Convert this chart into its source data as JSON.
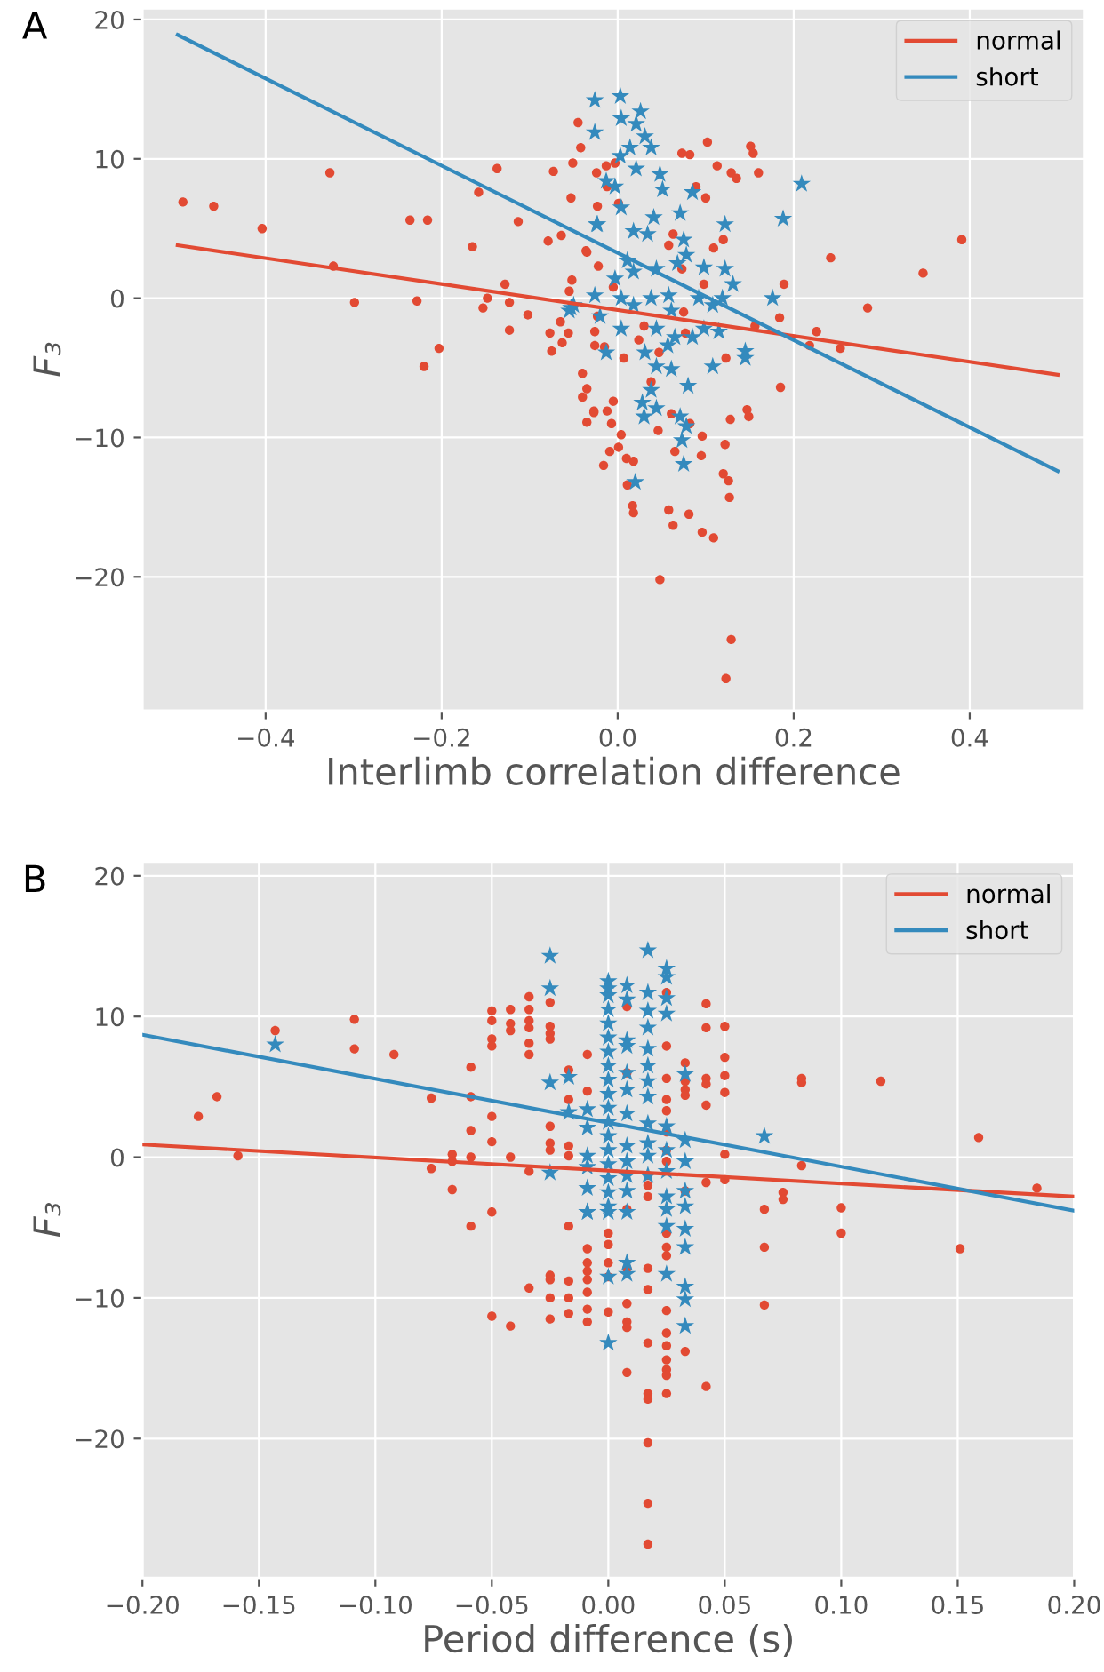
{
  "chart_data": [
    {
      "type": "scatter",
      "title": "A",
      "xlabel": "Interlimb correlation difference",
      "ylabel": "F₃",
      "xlim": [
        -0.54,
        0.53
      ],
      "ylim": [
        -29.6,
        20.8
      ],
      "xticks": [
        {
          "value": -0.4,
          "label": "−0.4"
        },
        {
          "value": -0.2,
          "label": "−0.2"
        },
        {
          "value": 0,
          "label": "0.0"
        },
        {
          "value": 0.2,
          "label": "0.2"
        },
        {
          "value": 0.4,
          "label": "0.4"
        }
      ],
      "yticks": [
        -20,
        -10,
        0,
        10,
        20
      ],
      "grid": true,
      "legend": "top right",
      "series": [
        {
          "type": "scatter",
          "marker": "circle",
          "color": "#e24a33",
          "x": [
            -0.494,
            -0.459,
            -0.404,
            -0.327,
            -0.323,
            -0.299,
            -0.236,
            -0.216,
            -0.228,
            -0.22,
            -0.203,
            -0.165,
            -0.158,
            -0.137,
            -0.153,
            -0.148,
            -0.128,
            -0.123,
            -0.123,
            -0.102,
            -0.113,
            -0.079,
            -0.073,
            -0.064,
            -0.077,
            -0.075,
            -0.063,
            -0.056,
            -0.065,
            -0.055,
            -0.053,
            -0.051,
            -0.045,
            -0.042,
            -0.04,
            -0.035,
            -0.04,
            -0.035,
            -0.027,
            -0.016,
            -0.009,
            -0.005,
            -0.022,
            -0.035,
            -0.023,
            -0.024,
            -0.013,
            -0.036,
            -0.052,
            -0.026,
            -0.015,
            -0.027,
            -0.012,
            -0.007,
            0.004,
            0.001,
            0.01,
            0.018,
            0.011,
            0.017,
            0.018,
            0.048,
            0.058,
            0.063,
            0.081,
            0.096,
            0.109,
            0.129,
            0.123,
            0.12,
            0.126,
            0.127,
            0.122,
            0.096,
            0.095,
            0.065,
            0.082,
            0.061,
            0.046,
            0.038,
            0.128,
            0.147,
            0.149,
            0.185,
            0.123,
            0.077,
            0.156,
            0.184,
            0.189,
            0.218,
            0.226,
            0.253,
            0.284,
            0.242,
            0.347,
            0.391,
            0.109,
            0.12,
            0.098,
            0.102,
            0.073,
            0.082,
            0.113,
            0.129,
            0.135,
            0.16,
            0.151,
            0.154,
            0.089,
            0.1,
            0.063,
            0.058,
            0.073,
            0.075,
            -0.023,
            -0.005,
            0.001,
            -0.003,
            -0.012,
            -0.026,
            0.007,
            0.024,
            0.047,
            0.03
          ],
          "values": [
            6.9,
            6.6,
            5.0,
            9.0,
            2.3,
            -0.3,
            5.6,
            5.6,
            -0.2,
            -4.9,
            -3.6,
            3.7,
            7.6,
            9.3,
            -0.7,
            0.0,
            1.0,
            -0.3,
            -2.3,
            -1.2,
            5.5,
            4.1,
            9.1,
            4.5,
            -2.5,
            -3.8,
            -3.2,
            -2.5,
            -1.7,
            0.5,
            7.2,
            9.7,
            12.6,
            10.8,
            -5.4,
            -6.5,
            -7.1,
            -8.9,
            -8.1,
            -12.0,
            -11.0,
            -7.4,
            2.3,
            3.3,
            6.6,
            9.0,
            9.5,
            3.4,
            1.3,
            -3.4,
            -3.5,
            -8.2,
            -8.1,
            -9.0,
            -9.8,
            -10.7,
            -11.5,
            -11.7,
            -13.4,
            -14.9,
            -15.4,
            -20.2,
            -15.2,
            -16.3,
            -15.5,
            -16.8,
            -17.2,
            -24.5,
            -27.3,
            -12.6,
            -13.1,
            -14.3,
            -10.5,
            -9.9,
            -11.3,
            -11.0,
            -9.0,
            -8.3,
            -9.5,
            -6.0,
            -8.7,
            -8.0,
            -8.5,
            -6.4,
            -4.3,
            -2.5,
            -2.0,
            -1.4,
            1.0,
            -3.4,
            -2.4,
            -3.6,
            -0.7,
            2.9,
            1.8,
            4.2,
            3.6,
            4.2,
            1.0,
            11.2,
            10.4,
            10.3,
            9.5,
            9.0,
            8.6,
            9.0,
            10.9,
            10.4,
            8.0,
            7.2,
            4.6,
            3.8,
            2.1,
            -1.0,
            -1.3,
            0.8,
            6.8,
            9.7,
            8.0,
            -2.4,
            -4.3,
            -3.0,
            -3.9,
            -2.0
          ]
        },
        {
          "type": "scatter",
          "marker": "star",
          "color": "#348abd",
          "x": [
            -0.026,
            0.003,
            -0.026,
            0.004,
            0.026,
            0.021,
            0.031,
            0.014,
            0.038,
            0.003,
            0.021,
            0.048,
            0.051,
            -0.013,
            -0.003,
            0.085,
            0.209,
            0.188,
            0.122,
            0.071,
            0.041,
            -0.023,
            0.004,
            0.018,
            0.034,
            0.075,
            0.068,
            0.078,
            0.098,
            0.122,
            0.131,
            0.044,
            0.011,
            0.018,
            -0.003,
            -0.026,
            -0.05,
            -0.055,
            -0.02,
            0.004,
            0.018,
            0.038,
            0.058,
            0.061,
            0.092,
            0.108,
            0.119,
            0.176,
            0.004,
            0.044,
            0.065,
            0.085,
            0.098,
            0.115,
            -0.013,
            0.031,
            0.057,
            0.044,
            0.061,
            0.108,
            0.145,
            0.145,
            0.08,
            0.038,
            0.028,
            0.044,
            0.03,
            0.071,
            0.078,
            0.073,
            0.075,
            0.02,
            -0.053,
            -0.024
          ],
          "values": [
            14.2,
            14.5,
            11.9,
            12.9,
            13.4,
            12.5,
            11.6,
            10.8,
            10.8,
            10.2,
            9.3,
            8.9,
            7.8,
            8.4,
            8.0,
            7.6,
            8.2,
            5.7,
            5.3,
            6.1,
            5.8,
            5.3,
            6.5,
            4.8,
            4.6,
            4.2,
            2.5,
            3.1,
            2.2,
            2.1,
            1.0,
            2.1,
            2.7,
            1.9,
            1.4,
            0.2,
            -0.5,
            -0.9,
            -1.3,
            0.0,
            -0.5,
            0.0,
            0.2,
            -0.9,
            0.0,
            -0.5,
            0.0,
            0.0,
            -2.2,
            -2.2,
            -2.8,
            -2.8,
            -2.2,
            -2.4,
            -3.9,
            -3.9,
            -3.4,
            -4.9,
            -5.1,
            -4.9,
            -3.8,
            -4.3,
            -6.3,
            -6.6,
            -7.5,
            -7.9,
            -8.5,
            -8.5,
            -9.2,
            -10.2,
            -11.9,
            -13.2,
            -0.7,
            5.3
          ]
        },
        {
          "type": "line",
          "name": "normal",
          "marker": "none",
          "color": "#e24a33",
          "x": [
            -0.5,
            0.5
          ],
          "values": [
            3.8,
            -5.5
          ]
        },
        {
          "type": "line",
          "name": "short",
          "marker": "none",
          "color": "#348abd",
          "x": [
            -0.5,
            0.5
          ],
          "values": [
            18.9,
            -12.4
          ]
        }
      ]
    },
    {
      "type": "scatter",
      "title": "B",
      "xlabel": "Period difference (s)",
      "ylabel": "F₃",
      "xlim": [
        -0.2,
        0.2
      ],
      "ylim": [
        -29.9,
        21
      ],
      "xticks": [
        {
          "value": -0.2,
          "label": "−0.20"
        },
        {
          "value": -0.15,
          "label": "−0.15"
        },
        {
          "value": -0.1,
          "label": "−0.10"
        },
        {
          "value": -0.05,
          "label": "−0.05"
        },
        {
          "value": 0,
          "label": "0.00"
        },
        {
          "value": 0.05,
          "label": "0.05"
        },
        {
          "value": 0.1,
          "label": "0.10"
        },
        {
          "value": 0.15,
          "label": "0.15"
        },
        {
          "value": 0.2,
          "label": "0.20"
        }
      ],
      "yticks": [
        -20,
        -10,
        0,
        10,
        20
      ],
      "grid": true,
      "legend": "top right",
      "series": [
        {
          "type": "scatter",
          "marker": "circle",
          "color": "#e24a33",
          "x": [
            -0.176,
            -0.168,
            -0.159,
            -0.143,
            -0.109,
            -0.109,
            -0.092,
            -0.076,
            -0.076,
            -0.067,
            -0.067,
            -0.067,
            -0.059,
            -0.059,
            -0.059,
            -0.059,
            -0.059,
            -0.05,
            -0.05,
            -0.05,
            -0.05,
            -0.05,
            -0.05,
            -0.05,
            -0.05,
            -0.042,
            -0.042,
            -0.042,
            -0.042,
            -0.042,
            -0.034,
            -0.034,
            -0.034,
            -0.034,
            -0.034,
            -0.034,
            -0.034,
            -0.034,
            -0.025,
            -0.025,
            -0.025,
            -0.025,
            -0.025,
            -0.025,
            -0.025,
            -0.025,
            -0.025,
            -0.025,
            -0.025,
            -0.017,
            -0.017,
            -0.017,
            -0.017,
            -0.017,
            -0.017,
            -0.017,
            -0.017,
            -0.009,
            -0.009,
            -0.009,
            -0.009,
            -0.009,
            -0.009,
            -0.009,
            -0.009,
            -0.009,
            0.0,
            0.0,
            0.0,
            0.0,
            0.0,
            0.008,
            0.008,
            0.008,
            0.008,
            0.008,
            0.008,
            0.008,
            0.008,
            0.017,
            0.017,
            0.017,
            0.017,
            0.017,
            0.017,
            0.017,
            0.017,
            0.017,
            0.017,
            0.017,
            0.025,
            0.025,
            0.025,
            0.025,
            0.025,
            0.025,
            0.025,
            0.025,
            0.025,
            0.025,
            0.025,
            0.025,
            0.025,
            0.025,
            0.025,
            0.025,
            0.025,
            0.025,
            0.033,
            0.033,
            0.033,
            0.033,
            0.033,
            0.033,
            0.042,
            0.042,
            0.042,
            0.042,
            0.042,
            0.042,
            0.042,
            0.05,
            0.05,
            0.05,
            0.05,
            0.05,
            0.05,
            0.067,
            0.067,
            0.067,
            0.075,
            0.075,
            0.083,
            0.083,
            0.083,
            0.1,
            0.1,
            0.117,
            0.151,
            0.159,
            0.184
          ],
          "values": [
            2.9,
            4.3,
            0.1,
            9.0,
            9.8,
            7.7,
            7.3,
            4.2,
            -0.8,
            0.2,
            -0.3,
            -2.3,
            6.4,
            4.3,
            1.9,
            0.0,
            -4.9,
            10.4,
            9.7,
            8.4,
            7.9,
            2.9,
            1.1,
            -3.9,
            -11.3,
            10.5,
            9.5,
            9.0,
            0.0,
            -12.0,
            11.4,
            10.5,
            9.7,
            9.2,
            8.1,
            7.3,
            -1.0,
            -9.3,
            11.0,
            9.3,
            8.8,
            8.4,
            2.2,
            1.0,
            0.5,
            -8.4,
            -8.7,
            -10.0,
            -11.5,
            6.2,
            4.1,
            0.8,
            0.1,
            -4.9,
            -8.8,
            -10.0,
            -11.1,
            7.3,
            4.7,
            -6.5,
            -7.5,
            -8.1,
            -8.7,
            -9.6,
            -10.8,
            -11.7,
            -5.4,
            -6.2,
            -7.5,
            -8.5,
            -11.0,
            10.7,
            6.0,
            -3.7,
            -7.9,
            -10.4,
            -11.7,
            -12.1,
            -15.3,
            -1.3,
            -2.0,
            -2.8,
            -7.9,
            -9.4,
            -13.2,
            -16.8,
            -17.2,
            -20.3,
            -24.6,
            -27.5,
            11.7,
            7.9,
            5.6,
            4.1,
            3.3,
            1.8,
            0.5,
            -0.3,
            -5.4,
            -6.4,
            -7.0,
            -10.9,
            -12.5,
            -13.4,
            -14.4,
            -15.1,
            -15.5,
            -16.8,
            6.7,
            5.4,
            4.8,
            4.4,
            -2.4,
            -13.8,
            10.9,
            9.2,
            5.6,
            5.2,
            3.7,
            -1.8,
            -16.3,
            9.3,
            7.1,
            5.8,
            4.6,
            0.2,
            -1.6,
            -3.7,
            -6.4,
            -10.5,
            -2.5,
            -3.0,
            5.6,
            5.3,
            -0.6,
            -3.6,
            -5.4,
            5.4,
            -6.5,
            1.4,
            -2.2
          ]
        },
        {
          "type": "scatter",
          "marker": "star",
          "color": "#348abd",
          "x": [
            -0.143,
            -0.025,
            -0.025,
            -0.025,
            -0.025,
            -0.017,
            -0.017,
            -0.009,
            -0.009,
            -0.009,
            -0.009,
            -0.009,
            -0.009,
            -0.009,
            0.0,
            0.0,
            0.0,
            0.0,
            0.0,
            0.0,
            0.0,
            0.0,
            0.0,
            0.0,
            0.0,
            0.0,
            0.0,
            0.0,
            0.0,
            0.0,
            0.0,
            0.0,
            0.0,
            0.0,
            0.0,
            0.008,
            0.008,
            0.008,
            0.008,
            0.008,
            0.008,
            0.008,
            0.008,
            0.008,
            0.008,
            0.008,
            0.008,
            0.008,
            0.008,
            0.017,
            0.017,
            0.017,
            0.017,
            0.017,
            0.017,
            0.017,
            0.017,
            0.017,
            0.017,
            0.017,
            0.017,
            0.025,
            0.025,
            0.025,
            0.025,
            0.025,
            0.025,
            0.025,
            0.025,
            0.025,
            0.025,
            0.025,
            0.033,
            0.033,
            0.033,
            0.033,
            0.033,
            0.033,
            0.033,
            0.033,
            0.033,
            0.033,
            0.067
          ],
          "values": [
            8.0,
            14.3,
            12.0,
            5.3,
            -1.1,
            5.7,
            3.2,
            3.4,
            2.1,
            0.1,
            -0.7,
            -2.2,
            -3.9,
            -3.9,
            12.5,
            11.5,
            10.5,
            9.5,
            8.5,
            7.5,
            6.5,
            5.5,
            4.5,
            3.5,
            2.5,
            1.5,
            0.5,
            -0.5,
            -1.5,
            -2.5,
            -3.5,
            -3.9,
            -8.5,
            -13.2,
            12.0,
            12.2,
            11.2,
            8.3,
            7.9,
            6.0,
            4.8,
            3.1,
            0.8,
            -0.3,
            -1.3,
            -2.4,
            -3.9,
            -7.5,
            -8.3,
            14.7,
            11.7,
            10.4,
            9.2,
            7.7,
            6.5,
            5.4,
            4.3,
            2.4,
            1.0,
            0.1,
            -1.3,
            13.4,
            12.8,
            11.3,
            10.2,
            2.2,
            0.5,
            -1.0,
            -2.8,
            -3.7,
            -4.9,
            -8.3,
            5.9,
            1.2,
            -0.3,
            -2.4,
            -3.5,
            -5.1,
            -6.4,
            -9.2,
            -10.1,
            -12.0,
            1.5
          ]
        },
        {
          "type": "line",
          "name": "normal",
          "marker": "none",
          "color": "#e24a33",
          "x": [
            -0.2,
            0.2
          ],
          "values": [
            0.9,
            -2.8
          ]
        },
        {
          "type": "line",
          "name": "short",
          "marker": "none",
          "color": "#348abd",
          "x": [
            -0.2,
            0.2
          ],
          "values": [
            8.7,
            -3.8
          ]
        }
      ]
    }
  ]
}
